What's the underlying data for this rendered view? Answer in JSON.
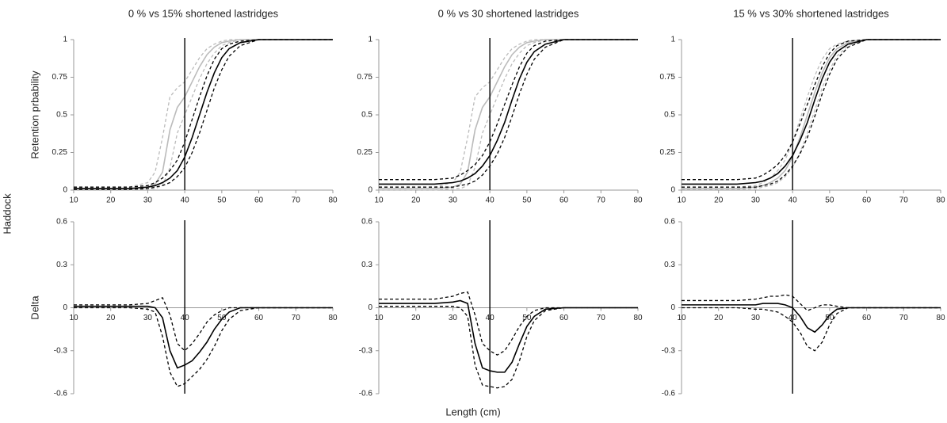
{
  "figure": {
    "row_label": "Haddock",
    "x_label": "Length (cm)"
  },
  "chart_data": [
    {
      "type": "line",
      "title": "0 % vs 15% shortened lastridges",
      "ylabel": "Retention prbability",
      "x": [
        10,
        15,
        20,
        25,
        30,
        32,
        34,
        36,
        38,
        40,
        42,
        44,
        46,
        48,
        50,
        52,
        55,
        60,
        65,
        70,
        80
      ],
      "xlim": [
        10,
        80
      ],
      "xticks": [
        10,
        20,
        30,
        40,
        50,
        60,
        70,
        80
      ],
      "ylim": [
        0,
        1
      ],
      "yticks": [
        0,
        0.25,
        0.5,
        0.75,
        1
      ],
      "vline": 40,
      "series": [
        {
          "color": "#bbbbbb",
          "dash": false,
          "values": [
            0.01,
            0.01,
            0.01,
            0.01,
            0.02,
            0.04,
            0.12,
            0.4,
            0.55,
            0.62,
            0.72,
            0.82,
            0.9,
            0.95,
            0.98,
            0.99,
            1,
            1,
            1,
            1,
            1
          ]
        },
        {
          "color": "#bbbbbb",
          "dash": true,
          "values": [
            0.02,
            0.02,
            0.02,
            0.02,
            0.05,
            0.12,
            0.35,
            0.62,
            0.68,
            0.72,
            0.8,
            0.88,
            0.94,
            0.97,
            0.99,
            1,
            1,
            1,
            1,
            1,
            1
          ]
        },
        {
          "color": "#bbbbbb",
          "dash": true,
          "values": [
            0,
            0,
            0,
            0,
            0.01,
            0.01,
            0.03,
            0.15,
            0.38,
            0.5,
            0.62,
            0.74,
            0.84,
            0.91,
            0.96,
            0.98,
            1,
            1,
            1,
            1,
            1
          ]
        },
        {
          "color": "#000000",
          "dash": false,
          "values": [
            0.01,
            0.01,
            0.01,
            0.01,
            0.02,
            0.03,
            0.05,
            0.08,
            0.13,
            0.22,
            0.35,
            0.5,
            0.65,
            0.78,
            0.88,
            0.94,
            0.98,
            1,
            1,
            1,
            1
          ]
        },
        {
          "color": "#000000",
          "dash": true,
          "values": [
            0.02,
            0.02,
            0.02,
            0.02,
            0.03,
            0.05,
            0.08,
            0.13,
            0.2,
            0.32,
            0.47,
            0.62,
            0.76,
            0.87,
            0.94,
            0.97,
            0.99,
            1,
            1,
            1,
            1
          ]
        },
        {
          "color": "#000000",
          "dash": true,
          "values": [
            0.005,
            0.005,
            0.005,
            0.005,
            0.01,
            0.02,
            0.03,
            0.05,
            0.09,
            0.15,
            0.25,
            0.38,
            0.53,
            0.68,
            0.8,
            0.89,
            0.96,
            1,
            1,
            1,
            1
          ]
        }
      ]
    },
    {
      "type": "line",
      "title": "0 % vs 30 shortened lastridges",
      "x": [
        10,
        15,
        20,
        25,
        30,
        32,
        34,
        36,
        38,
        40,
        42,
        44,
        46,
        48,
        50,
        52,
        55,
        60,
        65,
        70,
        80
      ],
      "xlim": [
        10,
        80
      ],
      "xticks": [
        10,
        20,
        30,
        40,
        50,
        60,
        70,
        80
      ],
      "ylim": [
        0,
        1
      ],
      "yticks": [
        0,
        0.25,
        0.5,
        0.75,
        1
      ],
      "vline": 40,
      "series": [
        {
          "color": "#bbbbbb",
          "dash": false,
          "values": [
            0.01,
            0.01,
            0.01,
            0.01,
            0.02,
            0.04,
            0.12,
            0.4,
            0.55,
            0.62,
            0.72,
            0.82,
            0.9,
            0.95,
            0.98,
            0.99,
            1,
            1,
            1,
            1,
            1
          ]
        },
        {
          "color": "#bbbbbb",
          "dash": true,
          "values": [
            0.02,
            0.02,
            0.02,
            0.02,
            0.05,
            0.12,
            0.35,
            0.62,
            0.68,
            0.72,
            0.8,
            0.88,
            0.94,
            0.97,
            0.99,
            1,
            1,
            1,
            1,
            1,
            1
          ]
        },
        {
          "color": "#bbbbbb",
          "dash": true,
          "values": [
            0,
            0,
            0,
            0,
            0.01,
            0.01,
            0.03,
            0.15,
            0.38,
            0.5,
            0.62,
            0.74,
            0.84,
            0.91,
            0.96,
            0.98,
            1,
            1,
            1,
            1,
            1
          ]
        },
        {
          "color": "#000000",
          "dash": false,
          "values": [
            0.04,
            0.04,
            0.04,
            0.04,
            0.05,
            0.06,
            0.08,
            0.11,
            0.16,
            0.23,
            0.33,
            0.45,
            0.6,
            0.74,
            0.85,
            0.92,
            0.97,
            1,
            1,
            1,
            1
          ]
        },
        {
          "color": "#000000",
          "dash": true,
          "values": [
            0.07,
            0.07,
            0.07,
            0.07,
            0.08,
            0.1,
            0.13,
            0.17,
            0.23,
            0.32,
            0.44,
            0.57,
            0.7,
            0.82,
            0.91,
            0.96,
            0.99,
            1,
            1,
            1,
            1
          ]
        },
        {
          "color": "#000000",
          "dash": true,
          "values": [
            0.02,
            0.02,
            0.02,
            0.02,
            0.02,
            0.03,
            0.04,
            0.06,
            0.1,
            0.16,
            0.24,
            0.35,
            0.49,
            0.64,
            0.77,
            0.87,
            0.95,
            1,
            1,
            1,
            1
          ]
        }
      ]
    },
    {
      "type": "line",
      "title": "15 % vs 30% shortened lastridges",
      "x": [
        10,
        15,
        20,
        25,
        30,
        32,
        34,
        36,
        38,
        40,
        42,
        44,
        46,
        48,
        50,
        52,
        55,
        60,
        65,
        70,
        80
      ],
      "xlim": [
        10,
        80
      ],
      "xticks": [
        10,
        20,
        30,
        40,
        50,
        60,
        70,
        80
      ],
      "ylim": [
        0,
        1
      ],
      "yticks": [
        0,
        0.25,
        0.5,
        0.75,
        1
      ],
      "vline": 40,
      "series": [
        {
          "color": "#bbbbbb",
          "dash": false,
          "values": [
            0.01,
            0.01,
            0.01,
            0.01,
            0.02,
            0.03,
            0.05,
            0.08,
            0.13,
            0.22,
            0.35,
            0.5,
            0.65,
            0.78,
            0.88,
            0.94,
            0.98,
            1,
            1,
            1,
            1
          ]
        },
        {
          "color": "#bbbbbb",
          "dash": true,
          "values": [
            0.02,
            0.02,
            0.02,
            0.02,
            0.03,
            0.05,
            0.08,
            0.13,
            0.2,
            0.32,
            0.47,
            0.62,
            0.76,
            0.87,
            0.94,
            0.97,
            0.99,
            1,
            1,
            1,
            1
          ]
        },
        {
          "color": "#bbbbbb",
          "dash": true,
          "values": [
            0.005,
            0.005,
            0.005,
            0.005,
            0.01,
            0.02,
            0.03,
            0.05,
            0.09,
            0.15,
            0.25,
            0.38,
            0.53,
            0.68,
            0.8,
            0.89,
            0.96,
            1,
            1,
            1,
            1
          ]
        },
        {
          "color": "#000000",
          "dash": false,
          "values": [
            0.04,
            0.04,
            0.04,
            0.04,
            0.05,
            0.06,
            0.08,
            0.11,
            0.16,
            0.23,
            0.33,
            0.45,
            0.6,
            0.74,
            0.85,
            0.92,
            0.97,
            1,
            1,
            1,
            1
          ]
        },
        {
          "color": "#000000",
          "dash": true,
          "values": [
            0.07,
            0.07,
            0.07,
            0.07,
            0.08,
            0.1,
            0.13,
            0.17,
            0.23,
            0.32,
            0.44,
            0.57,
            0.7,
            0.82,
            0.91,
            0.96,
            0.99,
            1,
            1,
            1,
            1
          ]
        },
        {
          "color": "#000000",
          "dash": true,
          "values": [
            0.02,
            0.02,
            0.02,
            0.02,
            0.02,
            0.03,
            0.04,
            0.06,
            0.1,
            0.16,
            0.24,
            0.35,
            0.49,
            0.64,
            0.77,
            0.87,
            0.95,
            1,
            1,
            1,
            1
          ]
        }
      ]
    },
    {
      "type": "line",
      "ylabel": "Delta",
      "x": [
        10,
        15,
        20,
        25,
        30,
        32,
        34,
        36,
        38,
        40,
        42,
        44,
        46,
        48,
        50,
        52,
        55,
        60,
        65,
        70,
        80
      ],
      "xlim": [
        10,
        80
      ],
      "xticks": [
        10,
        20,
        30,
        40,
        50,
        60,
        70,
        80
      ],
      "ylim": [
        -0.6,
        0.6
      ],
      "yticks": [
        -0.6,
        -0.3,
        0,
        0.3,
        0.6
      ],
      "vline": 40,
      "series": [
        {
          "color": "#000000",
          "dash": false,
          "values": [
            0.01,
            0.01,
            0.01,
            0.01,
            0.01,
            0,
            -0.07,
            -0.3,
            -0.42,
            -0.4,
            -0.37,
            -0.31,
            -0.24,
            -0.15,
            -0.08,
            -0.03,
            0,
            0,
            0,
            0,
            0
          ]
        },
        {
          "color": "#000000",
          "dash": true,
          "values": [
            0.02,
            0.02,
            0.02,
            0.02,
            0.03,
            0.05,
            0.07,
            -0.05,
            -0.25,
            -0.3,
            -0.25,
            -0.18,
            -0.1,
            -0.05,
            -0.02,
            0,
            0,
            0,
            0,
            0,
            0
          ]
        },
        {
          "color": "#000000",
          "dash": true,
          "values": [
            0,
            0,
            0,
            0,
            -0.01,
            -0.03,
            -0.2,
            -0.45,
            -0.55,
            -0.53,
            -0.48,
            -0.43,
            -0.36,
            -0.27,
            -0.16,
            -0.08,
            -0.02,
            0,
            0,
            0,
            0
          ]
        }
      ]
    },
    {
      "type": "line",
      "x": [
        10,
        15,
        20,
        25,
        30,
        32,
        34,
        36,
        38,
        40,
        42,
        44,
        46,
        48,
        50,
        52,
        55,
        60,
        65,
        70,
        80
      ],
      "xlim": [
        10,
        80
      ],
      "xticks": [
        10,
        20,
        30,
        40,
        50,
        60,
        70,
        80
      ],
      "ylim": [
        -0.6,
        0.6
      ],
      "yticks": [
        -0.6,
        -0.3,
        0,
        0.3,
        0.6
      ],
      "vline": 40,
      "series": [
        {
          "color": "#000000",
          "dash": false,
          "values": [
            0.03,
            0.03,
            0.03,
            0.03,
            0.04,
            0.05,
            0.03,
            -0.25,
            -0.42,
            -0.44,
            -0.45,
            -0.45,
            -0.38,
            -0.25,
            -0.13,
            -0.06,
            -0.01,
            0,
            0,
            0,
            0
          ]
        },
        {
          "color": "#000000",
          "dash": true,
          "values": [
            0.06,
            0.06,
            0.06,
            0.06,
            0.08,
            0.1,
            0.11,
            -0.05,
            -0.25,
            -0.3,
            -0.33,
            -0.3,
            -0.22,
            -0.13,
            -0.06,
            -0.02,
            0,
            0,
            0,
            0,
            0
          ]
        },
        {
          "color": "#000000",
          "dash": true,
          "values": [
            0.01,
            0.01,
            0.01,
            0.01,
            0.01,
            0,
            -0.06,
            -0.4,
            -0.54,
            -0.55,
            -0.56,
            -0.55,
            -0.5,
            -0.37,
            -0.2,
            -0.09,
            -0.02,
            0,
            0,
            0,
            0
          ]
        }
      ]
    },
    {
      "type": "line",
      "x": [
        10,
        15,
        20,
        25,
        30,
        32,
        34,
        36,
        38,
        40,
        42,
        44,
        46,
        48,
        50,
        52,
        55,
        60,
        65,
        70,
        80
      ],
      "xlim": [
        10,
        80
      ],
      "xticks": [
        10,
        20,
        30,
        40,
        50,
        60,
        70,
        80
      ],
      "ylim": [
        -0.6,
        0.6
      ],
      "yticks": [
        -0.6,
        -0.3,
        0,
        0.3,
        0.6
      ],
      "vline": 40,
      "series": [
        {
          "color": "#000000",
          "dash": false,
          "values": [
            0.02,
            0.02,
            0.02,
            0.02,
            0.02,
            0.03,
            0.03,
            0.03,
            0.02,
            0,
            -0.06,
            -0.14,
            -0.17,
            -0.12,
            -0.05,
            -0.01,
            0,
            0,
            0,
            0,
            0
          ]
        },
        {
          "color": "#000000",
          "dash": true,
          "values": [
            0.05,
            0.05,
            0.05,
            0.05,
            0.06,
            0.07,
            0.08,
            0.08,
            0.09,
            0.08,
            0.03,
            -0.02,
            0,
            0.02,
            0.02,
            0.01,
            0,
            0,
            0,
            0,
            0
          ]
        },
        {
          "color": "#000000",
          "dash": true,
          "values": [
            0,
            0,
            0,
            0,
            -0.01,
            -0.01,
            -0.02,
            -0.03,
            -0.06,
            -0.1,
            -0.17,
            -0.27,
            -0.3,
            -0.24,
            -0.12,
            -0.04,
            0,
            0,
            0,
            0,
            0
          ]
        }
      ]
    }
  ]
}
